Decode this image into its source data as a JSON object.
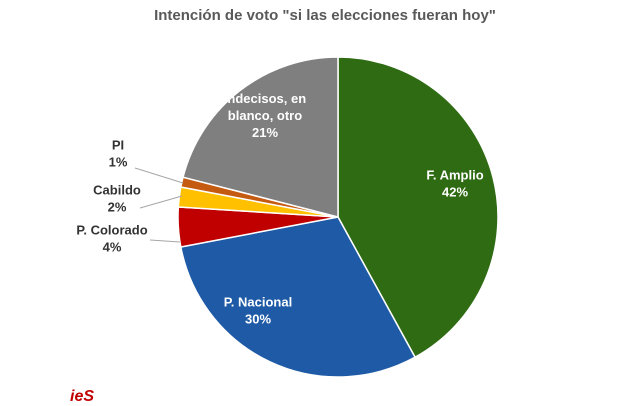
{
  "chart_data": {
    "type": "pie",
    "title": "Intención de voto \"si las elecciones fueran hoy\"",
    "start_angle_deg": 0,
    "direction": "clockwise",
    "slices": [
      {
        "label": "F. Amplio",
        "value": 42,
        "value_label": "42%",
        "color": "#2e6b12",
        "label_placement": "inside"
      },
      {
        "label": "P. Nacional",
        "value": 30,
        "value_label": "30%",
        "color": "#1f5aa6",
        "label_placement": "inside"
      },
      {
        "label": "P. Colorado",
        "value": 4,
        "value_label": "4%",
        "color": "#c00000",
        "label_placement": "outside"
      },
      {
        "label": "Cabildo",
        "value": 2,
        "value_label": "2%",
        "color": "#ffc000",
        "label_placement": "outside"
      },
      {
        "label": "PI",
        "value": 1,
        "value_label": "1%",
        "color": "#c55a11",
        "label_placement": "outside"
      },
      {
        "label": "Indecisos, en blanco, otro",
        "label_lines": [
          "Indecisos, en",
          "blanco, otro"
        ],
        "value": 21,
        "value_label": "21%",
        "color": "#7f7f7f",
        "label_placement": "inside"
      }
    ]
  },
  "logo": {
    "text": "ieS"
  }
}
